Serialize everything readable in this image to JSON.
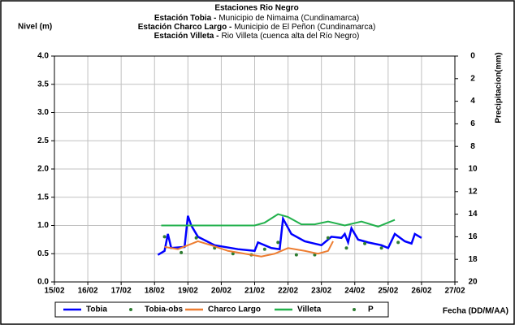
{
  "chart_data": {
    "type": "line",
    "title": "Estaciones Rio Negro",
    "subtitle_lines": [
      {
        "station": "Estación Tobia -",
        "location": "Municipio de Nimaima (Cundinamarca)"
      },
      {
        "station": "Estación Charco Largo -",
        "location": "Municipio de El Peñon (Cundinamarca)"
      },
      {
        "station": "Estación Villeta -",
        "location": "Rio Villeta (cuenca alta del Río Negro)"
      }
    ],
    "y_label": "Nivel (m)",
    "y2_label": "Precipitacion(mm)",
    "x_label": "Fecha (DD/M/AA)",
    "xlim": [
      15,
      27
    ],
    "xticks": [
      {
        "value": 15,
        "label": "15/02"
      },
      {
        "value": 16,
        "label": "16/02"
      },
      {
        "value": 17,
        "label": "17/02"
      },
      {
        "value": 18,
        "label": "18/02"
      },
      {
        "value": 19,
        "label": "19/02"
      },
      {
        "value": 20,
        "label": "20/02"
      },
      {
        "value": 21,
        "label": "21/02"
      },
      {
        "value": 22,
        "label": "22/02"
      },
      {
        "value": 23,
        "label": "23/02"
      },
      {
        "value": 24,
        "label": "24/02"
      },
      {
        "value": 25,
        "label": "25/02"
      },
      {
        "value": 26,
        "label": "26/02"
      },
      {
        "value": 27,
        "label": "27/02"
      }
    ],
    "ylim": [
      0,
      4
    ],
    "yticks": [
      {
        "value": 0,
        "label": "0.0"
      },
      0.5,
      {
        "value": 1,
        "label": "1.0"
      },
      1.5,
      {
        "value": 2,
        "label": "2.0"
      },
      2.5,
      {
        "value": 3,
        "label": "3.0"
      },
      3.5,
      {
        "value": 4,
        "label": "4.0"
      }
    ],
    "y2lim": [
      20,
      0
    ],
    "y2ticks": [
      0,
      2,
      4,
      6,
      8,
      10,
      12,
      14,
      16,
      18,
      20
    ],
    "grid": true,
    "series": [
      {
        "name": "Tobia",
        "color": "#0000ff",
        "style": "line",
        "x": [
          18.1,
          18.3,
          18.4,
          18.5,
          18.9,
          19.0,
          19.1,
          19.3,
          19.8,
          20.5,
          21.0,
          21.1,
          21.5,
          21.75,
          21.85,
          22.1,
          22.5,
          23.0,
          23.3,
          23.6,
          23.7,
          23.8,
          23.9,
          24.1,
          24.4,
          24.8,
          25.0,
          25.2,
          25.5,
          25.7,
          25.8,
          26.0
        ],
        "values": [
          0.48,
          0.55,
          0.85,
          0.6,
          0.62,
          1.17,
          1.0,
          0.8,
          0.65,
          0.58,
          0.55,
          0.7,
          0.6,
          0.58,
          1.12,
          0.85,
          0.72,
          0.65,
          0.8,
          0.78,
          0.85,
          0.7,
          0.95,
          0.75,
          0.7,
          0.65,
          0.6,
          0.85,
          0.72,
          0.68,
          0.85,
          0.78
        ]
      },
      {
        "name": "Tobia-obs",
        "color": "#2e7d32",
        "style": "points",
        "x": [
          18.3,
          18.8,
          19.25,
          19.8,
          20.35,
          20.9,
          21.3,
          21.7,
          22.25,
          22.8,
          23.2,
          23.75,
          24.3,
          24.8,
          25.3
        ],
        "values": [
          0.8,
          0.52,
          0.78,
          0.6,
          0.5,
          0.48,
          0.58,
          0.7,
          0.48,
          0.48,
          0.78,
          0.6,
          0.68,
          0.6,
          0.7
        ]
      },
      {
        "name": "Charco Largo",
        "color": "#ed7d31",
        "style": "line",
        "x": [
          18.3,
          18.7,
          19.0,
          19.3,
          19.7,
          20.2,
          20.7,
          21.2,
          21.6,
          22.0,
          22.5,
          22.9,
          23.2,
          23.35
        ],
        "values": [
          0.62,
          0.58,
          0.65,
          0.72,
          0.65,
          0.55,
          0.5,
          0.45,
          0.5,
          0.6,
          0.55,
          0.5,
          0.55,
          0.72
        ]
      },
      {
        "name": "Villeta",
        "color": "#22b14c",
        "style": "line",
        "x": [
          18.2,
          21.0,
          21.3,
          21.7,
          22.0,
          22.4,
          22.8,
          23.2,
          23.7,
          24.2,
          24.7,
          25.2
        ],
        "values": [
          1.0,
          1.0,
          1.05,
          1.2,
          1.15,
          1.02,
          1.02,
          1.07,
          1.0,
          1.07,
          0.98,
          1.1
        ]
      },
      {
        "name": "P",
        "color": "#2e7d32",
        "style": "points",
        "axis": "y2",
        "x": [],
        "values": []
      }
    ]
  }
}
